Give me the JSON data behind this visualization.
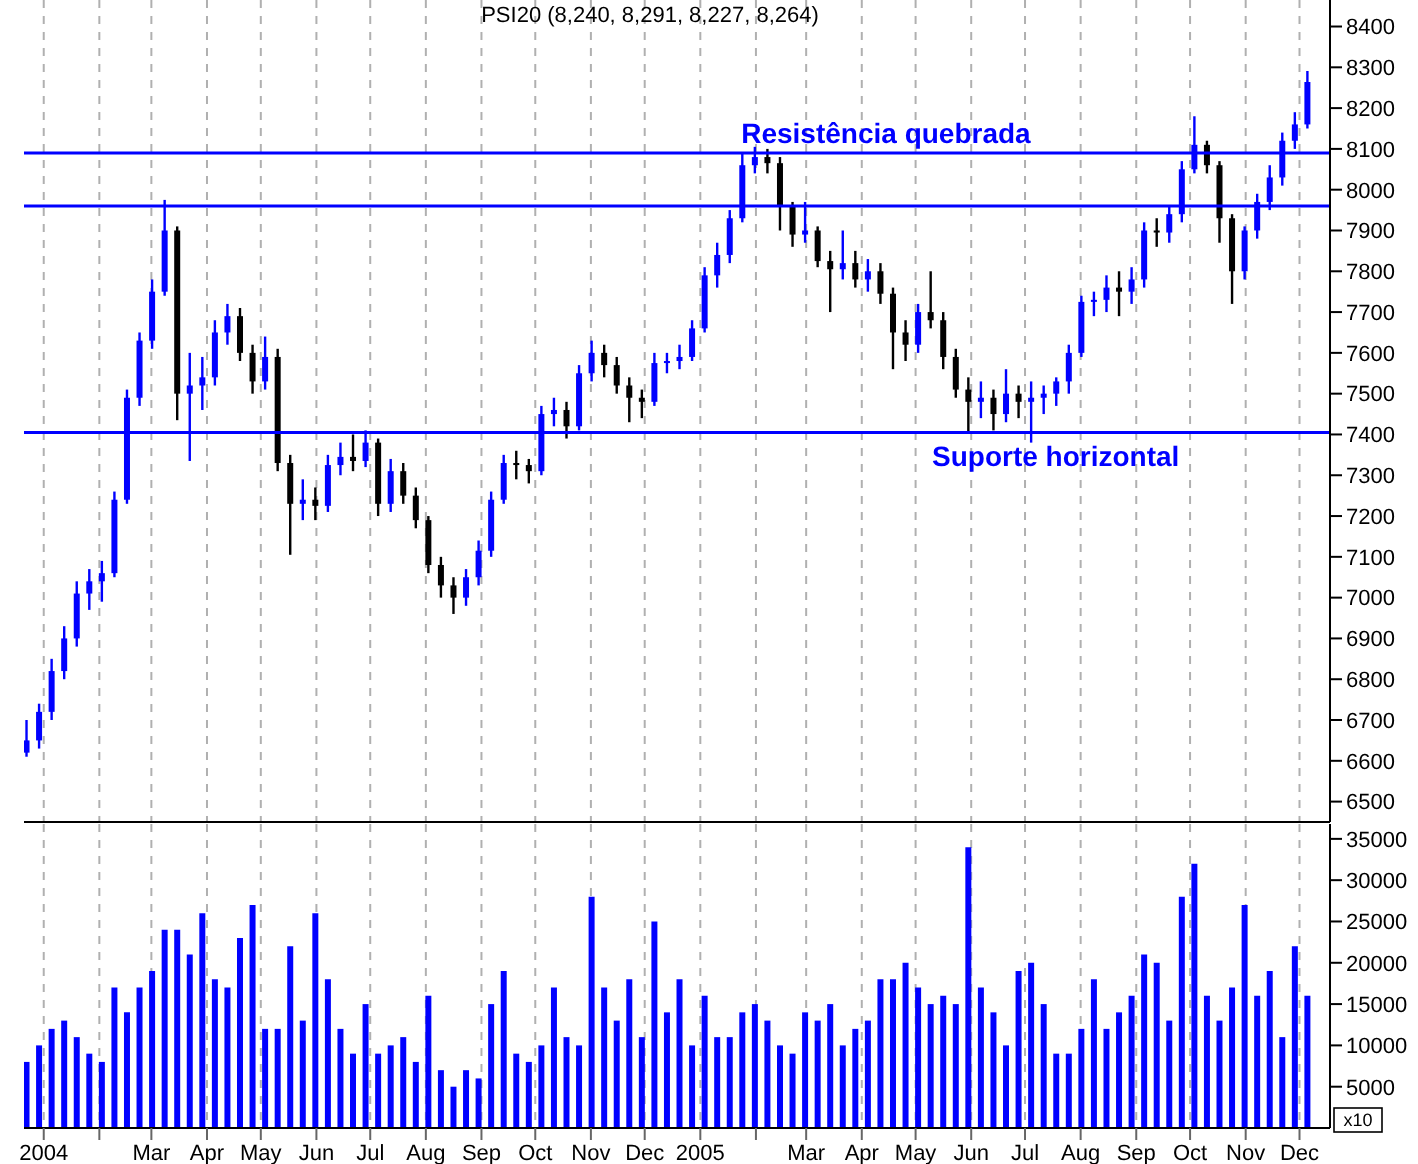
{
  "chart_data": [
    {
      "type": "candlestick",
      "title": "PSI20 (8,240, 8,291, 8,227, 8,264)",
      "x": [
        "2003-12-22",
        "2003-12-29",
        "2004-01-05",
        "2004-01-12",
        "2004-01-19",
        "2004-01-26",
        "2004-02-02",
        "2004-02-09",
        "2004-02-16",
        "2004-02-23",
        "2004-03-01",
        "2004-03-08",
        "2004-03-15",
        "2004-03-22",
        "2004-03-29",
        "2004-04-05",
        "2004-04-12",
        "2004-04-19",
        "2004-04-26",
        "2004-05-03",
        "2004-05-10",
        "2004-05-17",
        "2004-05-24",
        "2004-05-31",
        "2004-06-07",
        "2004-06-14",
        "2004-06-21",
        "2004-06-28",
        "2004-07-05",
        "2004-07-12",
        "2004-07-19",
        "2004-07-26",
        "2004-08-02",
        "2004-08-09",
        "2004-08-16",
        "2004-08-23",
        "2004-08-30",
        "2004-09-06",
        "2004-09-13",
        "2004-09-20",
        "2004-09-27",
        "2004-10-04",
        "2004-10-11",
        "2004-10-18",
        "2004-10-25",
        "2004-11-01",
        "2004-11-08",
        "2004-11-15",
        "2004-11-22",
        "2004-11-29",
        "2004-12-06",
        "2004-12-13",
        "2004-12-20",
        "2004-12-27",
        "2005-01-03",
        "2005-01-10",
        "2005-01-17",
        "2005-01-24",
        "2005-01-31",
        "2005-02-07",
        "2005-02-14",
        "2005-02-21",
        "2005-02-28",
        "2005-03-07",
        "2005-03-14",
        "2005-03-21",
        "2005-03-28",
        "2005-04-04",
        "2005-04-11",
        "2005-04-18",
        "2005-04-25",
        "2005-05-02",
        "2005-05-09",
        "2005-05-16",
        "2005-05-23",
        "2005-05-30",
        "2005-06-06",
        "2005-06-13",
        "2005-06-20",
        "2005-06-27",
        "2005-07-04",
        "2005-07-11",
        "2005-07-18",
        "2005-07-25",
        "2005-08-01",
        "2005-08-08",
        "2005-08-15",
        "2005-08-22",
        "2005-08-29",
        "2005-09-05",
        "2005-09-12",
        "2005-09-19",
        "2005-09-26",
        "2005-10-03",
        "2005-10-10",
        "2005-10-17",
        "2005-10-24",
        "2005-10-31",
        "2005-11-07",
        "2005-11-14",
        "2005-11-21",
        "2005-11-28",
        "2005-12-05"
      ],
      "ohlc": [
        [
          6620,
          6700,
          6610,
          6650
        ],
        [
          6650,
          6740,
          6630,
          6720
        ],
        [
          6720,
          6850,
          6700,
          6820
        ],
        [
          6820,
          6930,
          6800,
          6900
        ],
        [
          6900,
          7040,
          6880,
          7010
        ],
        [
          7010,
          7070,
          6970,
          7040
        ],
        [
          7040,
          7090,
          6990,
          7060
        ],
        [
          7060,
          7260,
          7050,
          7240
        ],
        [
          7240,
          7510,
          7230,
          7490
        ],
        [
          7490,
          7650,
          7470,
          7630
        ],
        [
          7630,
          7780,
          7610,
          7750
        ],
        [
          7750,
          7975,
          7740,
          7900
        ],
        [
          7900,
          7910,
          7435,
          7500
        ],
        [
          7500,
          7600,
          7335,
          7520
        ],
        [
          7520,
          7590,
          7460,
          7540
        ],
        [
          7540,
          7680,
          7520,
          7650
        ],
        [
          7650,
          7720,
          7620,
          7690
        ],
        [
          7690,
          7710,
          7580,
          7600
        ],
        [
          7600,
          7620,
          7500,
          7530
        ],
        [
          7530,
          7640,
          7510,
          7590
        ],
        [
          7590,
          7610,
          7310,
          7330
        ],
        [
          7330,
          7350,
          7105,
          7230
        ],
        [
          7230,
          7290,
          7190,
          7240
        ],
        [
          7240,
          7270,
          7190,
          7225
        ],
        [
          7225,
          7350,
          7210,
          7325
        ],
        [
          7325,
          7380,
          7300,
          7345
        ],
        [
          7345,
          7400,
          7310,
          7335
        ],
        [
          7335,
          7410,
          7320,
          7380
        ],
        [
          7380,
          7390,
          7200,
          7230
        ],
        [
          7230,
          7340,
          7210,
          7310
        ],
        [
          7310,
          7330,
          7230,
          7250
        ],
        [
          7250,
          7270,
          7170,
          7190
        ],
        [
          7190,
          7200,
          7060,
          7080
        ],
        [
          7080,
          7100,
          7000,
          7030
        ],
        [
          7030,
          7050,
          6960,
          7000
        ],
        [
          7000,
          7070,
          6980,
          7050
        ],
        [
          7050,
          7140,
          7030,
          7115
        ],
        [
          7115,
          7260,
          7100,
          7240
        ],
        [
          7240,
          7350,
          7230,
          7330
        ],
        [
          7330,
          7360,
          7290,
          7325
        ],
        [
          7325,
          7340,
          7280,
          7310
        ],
        [
          7310,
          7470,
          7300,
          7450
        ],
        [
          7450,
          7490,
          7420,
          7460
        ],
        [
          7460,
          7480,
          7390,
          7420
        ],
        [
          7420,
          7570,
          7410,
          7550
        ],
        [
          7550,
          7630,
          7530,
          7600
        ],
        [
          7600,
          7620,
          7540,
          7570
        ],
        [
          7570,
          7590,
          7500,
          7520
        ],
        [
          7520,
          7540,
          7430,
          7490
        ],
        [
          7490,
          7510,
          7440,
          7480
        ],
        [
          7480,
          7600,
          7470,
          7575
        ],
        [
          7575,
          7600,
          7550,
          7580
        ],
        [
          7580,
          7620,
          7560,
          7590
        ],
        [
          7590,
          7680,
          7580,
          7660
        ],
        [
          7660,
          7810,
          7650,
          7790
        ],
        [
          7790,
          7870,
          7760,
          7840
        ],
        [
          7840,
          7950,
          7820,
          7930
        ],
        [
          7930,
          8090,
          7920,
          8060
        ],
        [
          8060,
          8105,
          8040,
          8080
        ],
        [
          8080,
          8100,
          8040,
          8065
        ],
        [
          8065,
          8080,
          7900,
          7960
        ],
        [
          7960,
          7970,
          7860,
          7890
        ],
        [
          7890,
          7970,
          7870,
          7900
        ],
        [
          7900,
          7910,
          7810,
          7825
        ],
        [
          7825,
          7850,
          7700,
          7805
        ],
        [
          7805,
          7900,
          7780,
          7820
        ],
        [
          7820,
          7850,
          7760,
          7780
        ],
        [
          7780,
          7830,
          7750,
          7800
        ],
        [
          7800,
          7820,
          7720,
          7745
        ],
        [
          7745,
          7760,
          7560,
          7650
        ],
        [
          7650,
          7680,
          7580,
          7620
        ],
        [
          7620,
          7720,
          7600,
          7700
        ],
        [
          7700,
          7800,
          7660,
          7680
        ],
        [
          7680,
          7700,
          7560,
          7590
        ],
        [
          7590,
          7610,
          7490,
          7510
        ],
        [
          7510,
          7540,
          7405,
          7480
        ],
        [
          7480,
          7530,
          7440,
          7490
        ],
        [
          7490,
          7510,
          7410,
          7450
        ],
        [
          7450,
          7560,
          7430,
          7500
        ],
        [
          7500,
          7520,
          7440,
          7480
        ],
        [
          7480,
          7530,
          7380,
          7490
        ],
        [
          7490,
          7520,
          7450,
          7500
        ],
        [
          7500,
          7540,
          7470,
          7530
        ],
        [
          7530,
          7620,
          7500,
          7600
        ],
        [
          7600,
          7740,
          7590,
          7725
        ],
        [
          7725,
          7750,
          7690,
          7730
        ],
        [
          7730,
          7790,
          7700,
          7760
        ],
        [
          7760,
          7800,
          7690,
          7750
        ],
        [
          7750,
          7810,
          7720,
          7780
        ],
        [
          7780,
          7920,
          7760,
          7900
        ],
        [
          7900,
          7930,
          7860,
          7895
        ],
        [
          7895,
          7960,
          7870,
          7940
        ],
        [
          7940,
          8070,
          7920,
          8050
        ],
        [
          8050,
          8180,
          8040,
          8110
        ],
        [
          8110,
          8120,
          8040,
          8060
        ],
        [
          8060,
          8070,
          7870,
          7930
        ],
        [
          7930,
          7940,
          7720,
          7800
        ],
        [
          7800,
          7910,
          7780,
          7900
        ],
        [
          7900,
          7990,
          7880,
          7970
        ],
        [
          7970,
          8060,
          7950,
          8030
        ],
        [
          8030,
          8140,
          8010,
          8120
        ],
        [
          8120,
          8190,
          8100,
          8160
        ],
        [
          8160,
          8291,
          8150,
          8264
        ]
      ],
      "colors": [
        "#0000ff",
        "#0000ff",
        "#0000ff",
        "#0000ff",
        "#0000ff",
        "#0000ff",
        "#0000ff",
        "#0000ff",
        "#0000ff",
        "#0000ff",
        "#0000ff",
        "#0000ff",
        "#000000",
        "#0000ff",
        "#0000ff",
        "#0000ff",
        "#0000ff",
        "#000000",
        "#000000",
        "#0000ff",
        "#000000",
        "#000000",
        "#0000ff",
        "#000000",
        "#0000ff",
        "#0000ff",
        "#000000",
        "#0000ff",
        "#000000",
        "#0000ff",
        "#000000",
        "#000000",
        "#000000",
        "#000000",
        "#000000",
        "#0000ff",
        "#0000ff",
        "#0000ff",
        "#0000ff",
        "#000000",
        "#000000",
        "#0000ff",
        "#0000ff",
        "#000000",
        "#0000ff",
        "#0000ff",
        "#000000",
        "#000000",
        "#000000",
        "#000000",
        "#0000ff",
        "#0000ff",
        "#0000ff",
        "#0000ff",
        "#0000ff",
        "#0000ff",
        "#0000ff",
        "#0000ff",
        "#0000ff",
        "#000000",
        "#000000",
        "#000000",
        "#0000ff",
        "#000000",
        "#000000",
        "#0000ff",
        "#000000",
        "#0000ff",
        "#000000",
        "#000000",
        "#000000",
        "#0000ff",
        "#000000",
        "#000000",
        "#000000",
        "#000000",
        "#0000ff",
        "#000000",
        "#0000ff",
        "#000000",
        "#0000ff",
        "#0000ff",
        "#0000ff",
        "#0000ff",
        "#0000ff",
        "#0000ff",
        "#0000ff",
        "#000000",
        "#0000ff",
        "#0000ff",
        "#000000",
        "#0000ff",
        "#0000ff",
        "#0000ff",
        "#000000",
        "#000000",
        "#000000",
        "#0000ff",
        "#0000ff",
        "#0000ff",
        "#0000ff",
        "#0000ff",
        "#0000ff"
      ],
      "xlim": [
        "2003-12-21",
        "2005-12-18"
      ],
      "xticks": [
        {
          "value": "2004-01-01",
          "label": null
        },
        {
          "value": "2004-02-01",
          "label": null
        },
        {
          "value": "2004-03-01",
          "label": null
        },
        {
          "value": "2004-04-01",
          "label": null
        },
        {
          "value": "2004-05-01",
          "label": null
        },
        {
          "value": "2004-06-01",
          "label": null
        },
        {
          "value": "2004-07-01",
          "label": null
        },
        {
          "value": "2004-08-01",
          "label": null
        },
        {
          "value": "2004-09-01",
          "label": null
        },
        {
          "value": "2004-10-01",
          "label": null
        },
        {
          "value": "2004-11-01",
          "label": null
        },
        {
          "value": "2004-12-01",
          "label": null
        },
        {
          "value": "2005-01-01",
          "label": null
        },
        {
          "value": "2005-02-01",
          "label": null
        },
        {
          "value": "2005-03-01",
          "label": null
        },
        {
          "value": "2005-04-01",
          "label": null
        },
        {
          "value": "2005-05-01",
          "label": null
        },
        {
          "value": "2005-06-01",
          "label": null
        },
        {
          "value": "2005-07-01",
          "label": null
        },
        {
          "value": "2005-08-01",
          "label": null
        },
        {
          "value": "2005-09-01",
          "label": null
        },
        {
          "value": "2005-10-01",
          "label": null
        },
        {
          "value": "2005-11-01",
          "label": null
        },
        {
          "value": "2005-12-01",
          "label": null
        }
      ],
      "ylim": [
        6450,
        8465
      ],
      "yticks": [
        6500,
        6600,
        6700,
        6800,
        6900,
        7000,
        7100,
        7200,
        7300,
        7400,
        7500,
        7600,
        7700,
        7800,
        7900,
        8000,
        8100,
        8200,
        8300,
        8400
      ],
      "ref_lines": [
        {
          "axis": "y",
          "value": 8090,
          "label": "Resistência quebrada",
          "color": "#0000ff"
        },
        {
          "axis": "y",
          "value": 7960,
          "color": "#0000ff"
        },
        {
          "axis": "y",
          "value": 7405,
          "label": "Suporte horizontal",
          "color": "#0000ff"
        }
      ],
      "grid": "x",
      "tick_labels": "y",
      "legend": false
    },
    {
      "type": "bar",
      "ylabel": "x10",
      "x": [
        "2003-12-22",
        "2003-12-29",
        "2004-01-05",
        "2004-01-12",
        "2004-01-19",
        "2004-01-26",
        "2004-02-02",
        "2004-02-09",
        "2004-02-16",
        "2004-02-23",
        "2004-03-01",
        "2004-03-08",
        "2004-03-15",
        "2004-03-22",
        "2004-03-29",
        "2004-04-05",
        "2004-04-12",
        "2004-04-19",
        "2004-04-26",
        "2004-05-03",
        "2004-05-10",
        "2004-05-17",
        "2004-05-24",
        "2004-05-31",
        "2004-06-07",
        "2004-06-14",
        "2004-06-21",
        "2004-06-28",
        "2004-07-05",
        "2004-07-12",
        "2004-07-19",
        "2004-07-26",
        "2004-08-02",
        "2004-08-09",
        "2004-08-16",
        "2004-08-23",
        "2004-08-30",
        "2004-09-06",
        "2004-09-13",
        "2004-09-20",
        "2004-09-27",
        "2004-10-04",
        "2004-10-11",
        "2004-10-18",
        "2004-10-25",
        "2004-11-01",
        "2004-11-08",
        "2004-11-15",
        "2004-11-22",
        "2004-11-29",
        "2004-12-06",
        "2004-12-13",
        "2004-12-20",
        "2004-12-27",
        "2005-01-03",
        "2005-01-10",
        "2005-01-17",
        "2005-01-24",
        "2005-01-31",
        "2005-02-07",
        "2005-02-14",
        "2005-02-21",
        "2005-02-28",
        "2005-03-07",
        "2005-03-14",
        "2005-03-21",
        "2005-03-28",
        "2005-04-04",
        "2005-04-11",
        "2005-04-18",
        "2005-04-25",
        "2005-05-02",
        "2005-05-09",
        "2005-05-16",
        "2005-05-23",
        "2005-05-30",
        "2005-06-06",
        "2005-06-13",
        "2005-06-20",
        "2005-06-27",
        "2005-07-04",
        "2005-07-11",
        "2005-07-18",
        "2005-07-25",
        "2005-08-01",
        "2005-08-08",
        "2005-08-15",
        "2005-08-22",
        "2005-08-29",
        "2005-09-05",
        "2005-09-12",
        "2005-09-19",
        "2005-09-26",
        "2005-10-03",
        "2005-10-10",
        "2005-10-17",
        "2005-10-24",
        "2005-10-31",
        "2005-11-07",
        "2005-11-14",
        "2005-11-21",
        "2005-11-28",
        "2005-12-05"
      ],
      "values": [
        8000,
        10000,
        12000,
        13000,
        11000,
        9000,
        8000,
        17000,
        14000,
        17000,
        19000,
        24000,
        24000,
        21000,
        26000,
        18000,
        17000,
        23000,
        27000,
        12000,
        12000,
        22000,
        13000,
        26000,
        18000,
        12000,
        9000,
        15000,
        9000,
        10000,
        11000,
        8000,
        16000,
        7000,
        5000,
        7000,
        6000,
        15000,
        19000,
        9000,
        8000,
        10000,
        17000,
        11000,
        10000,
        28000,
        17000,
        13000,
        18000,
        11000,
        25000,
        14000,
        18000,
        10000,
        16000,
        11000,
        11000,
        14000,
        15000,
        13000,
        10000,
        9000,
        14000,
        13000,
        15000,
        10000,
        12000,
        13000,
        18000,
        18000,
        20000,
        17000,
        15000,
        16000,
        15000,
        34000,
        17000,
        14000,
        10000,
        19000,
        20000,
        15000,
        9000,
        9000,
        12000,
        18000,
        12000,
        14000,
        16000,
        21000,
        20000,
        13000,
        28000,
        32000,
        16000,
        13000,
        17000,
        27000,
        16000,
        19000,
        11000,
        22000,
        16000
      ],
      "color": "#0000ff",
      "xlim": [
        "2003-12-21",
        "2005-12-18"
      ],
      "xticks": [
        {
          "value": "2004-01-01",
          "label": "2004"
        },
        {
          "value": "2004-02-01",
          "label": null
        },
        {
          "value": "2004-03-01",
          "label": "Mar"
        },
        {
          "value": "2004-04-01",
          "label": "Apr"
        },
        {
          "value": "2004-05-01",
          "label": "May"
        },
        {
          "value": "2004-06-01",
          "label": "Jun"
        },
        {
          "value": "2004-07-01",
          "label": "Jul"
        },
        {
          "value": "2004-08-01",
          "label": "Aug"
        },
        {
          "value": "2004-09-01",
          "label": "Sep"
        },
        {
          "value": "2004-10-01",
          "label": "Oct"
        },
        {
          "value": "2004-11-01",
          "label": "Nov"
        },
        {
          "value": "2004-12-01",
          "label": "Dec"
        },
        {
          "value": "2005-01-01",
          "label": "2005"
        },
        {
          "value": "2005-02-01",
          "label": null
        },
        {
          "value": "2005-03-01",
          "label": "Mar"
        },
        {
          "value": "2005-04-01",
          "label": "Apr"
        },
        {
          "value": "2005-05-01",
          "label": "May"
        },
        {
          "value": "2005-06-01",
          "label": "Jun"
        },
        {
          "value": "2005-07-01",
          "label": "Jul"
        },
        {
          "value": "2005-08-01",
          "label": "Aug"
        },
        {
          "value": "2005-09-01",
          "label": "Sep"
        },
        {
          "value": "2005-10-01",
          "label": "Oct"
        },
        {
          "value": "2005-11-01",
          "label": "Nov"
        },
        {
          "value": "2005-12-01",
          "label": "Dec"
        }
      ],
      "ylim": [
        0,
        36800
      ],
      "yticks": [
        5000,
        10000,
        15000,
        20000,
        25000,
        30000,
        35000
      ],
      "grid": "x",
      "legend": false
    }
  ]
}
